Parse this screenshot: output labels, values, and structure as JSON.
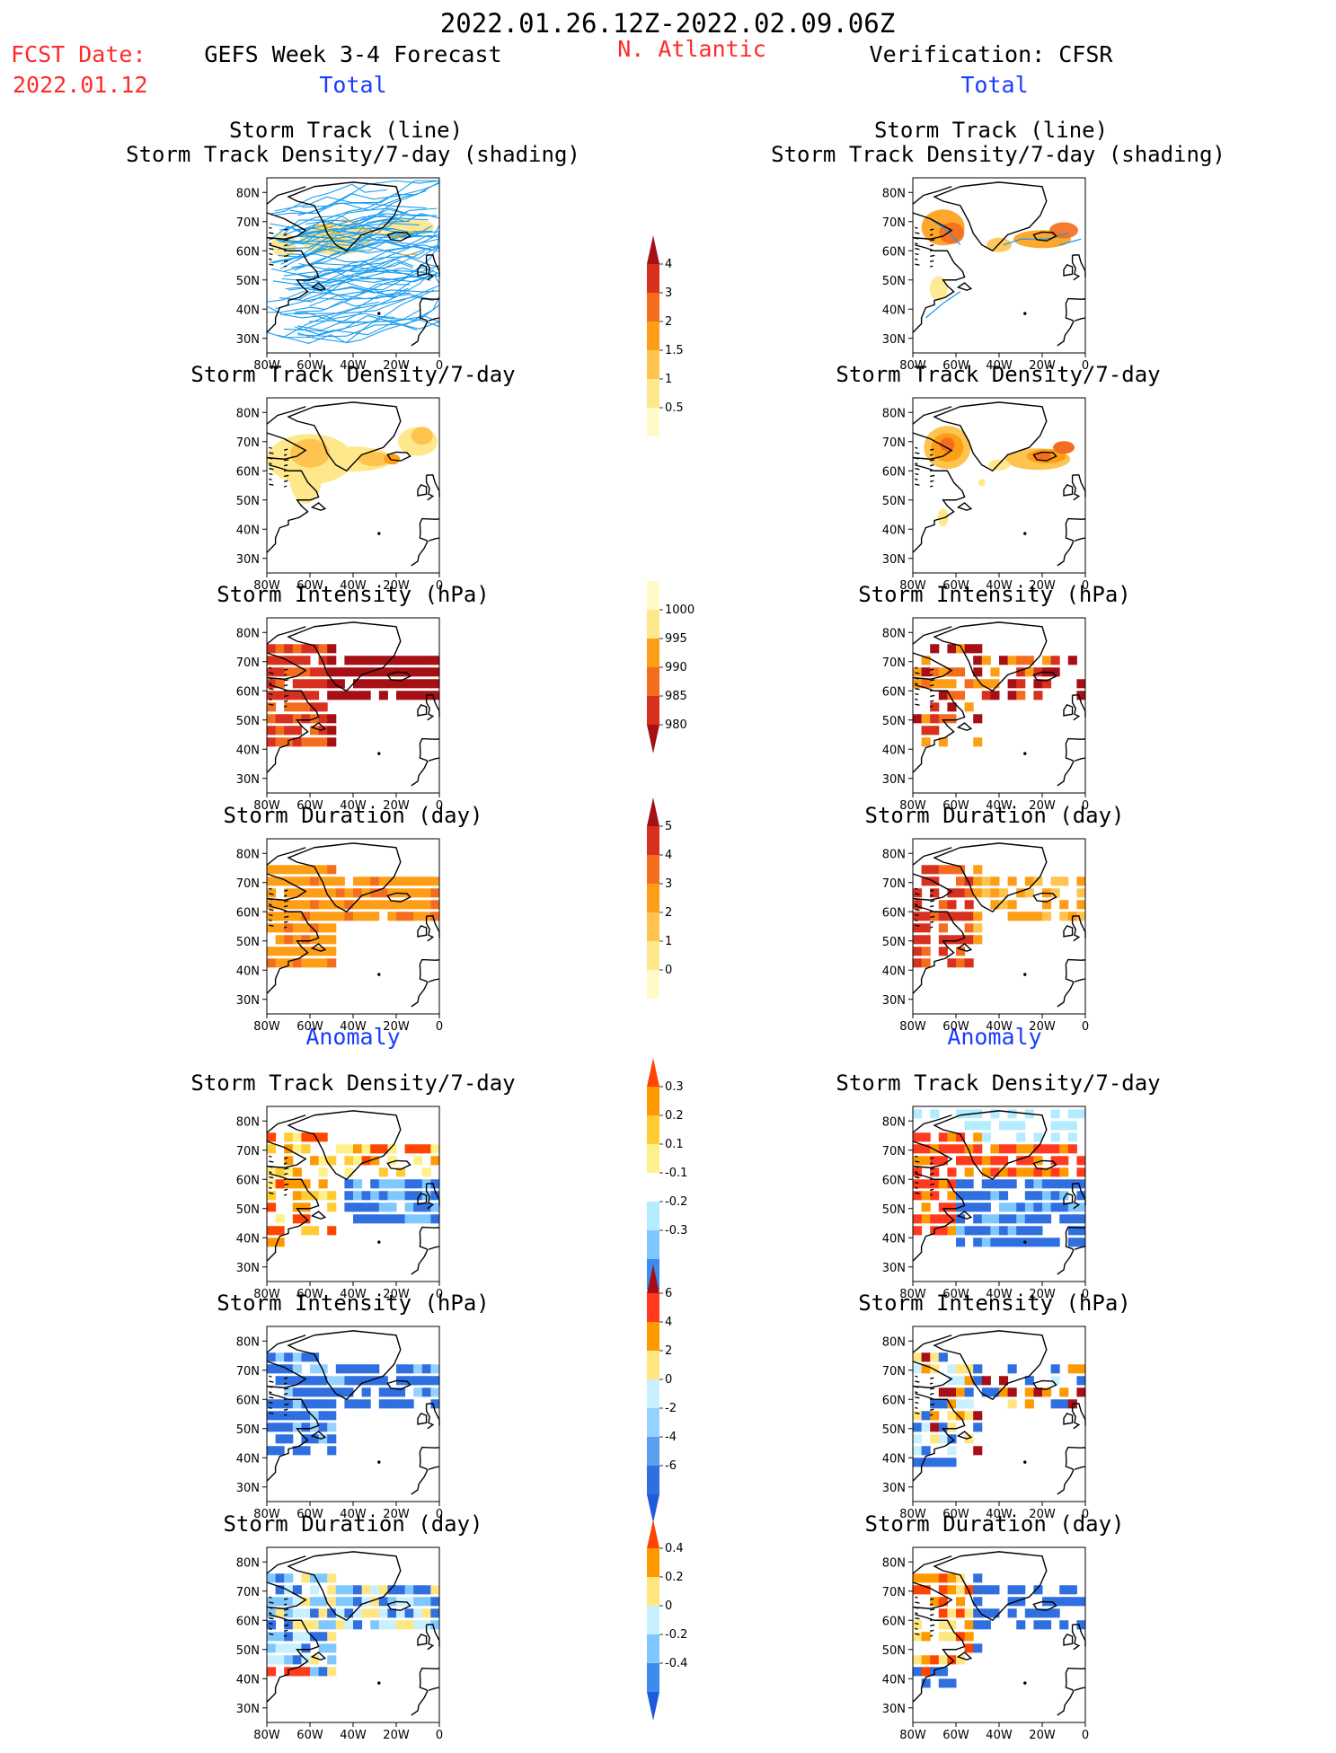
{
  "header": {
    "date_range": "2022.01.26.12Z-2022.02.09.06Z",
    "fcst_label": "FCST Date:",
    "fcst_date": "2022.01.12",
    "left_title": "GEFS Week 3-4 Forecast",
    "region": "N. Atlantic",
    "right_title": "Verification: CFSR"
  },
  "sections": {
    "total": "Total",
    "anomaly": "Anomaly"
  },
  "map_axes": {
    "lat_ticks": [
      "80N",
      "70N",
      "60N",
      "50N",
      "40N",
      "30N"
    ],
    "lon_ticks": [
      "80W",
      "60W",
      "40W",
      "20W",
      "0"
    ]
  },
  "panel_titles": {
    "track_line": "Storm Track (line)",
    "track_shading": "Storm Track Density/7-day (shading)",
    "density": "Storm Track Density/7-day",
    "intensity": "Storm Intensity (hPa)",
    "duration": "Storm Duration (day)"
  },
  "colorbars": {
    "density_total": {
      "labels": [
        "4",
        "3",
        "2",
        "1.5",
        "1",
        "0.5"
      ],
      "colors": [
        "#a50f15",
        "#d7301f",
        "#f46d1e",
        "#fd9e16",
        "#fec44f",
        "#fee88b",
        "#fffac8"
      ]
    },
    "intensity_total": {
      "labels": [
        "1000",
        "995",
        "990",
        "985",
        "980"
      ],
      "colors": [
        "#fffac8",
        "#fee88b",
        "#fd9e16",
        "#f46d1e",
        "#d7301f",
        "#a50f15"
      ]
    },
    "duration_total": {
      "labels": [
        "5",
        "4",
        "3",
        "2",
        "1",
        "0"
      ],
      "colors": [
        "#a50f15",
        "#d7301f",
        "#f46d1e",
        "#fd9e16",
        "#fec44f",
        "#fee88b",
        "#fffac8"
      ]
    },
    "density_anom": {
      "labels": [
        "0.3",
        "0.2",
        "0.1",
        "-0.1",
        "-0.2",
        "-0.3"
      ],
      "colors": [
        "#ff4500",
        "#ff9900",
        "#ffcc33",
        "#fff08a",
        "#ffffff",
        "#b4ecff",
        "#7ec8ff",
        "#3c8cf0",
        "#1e5adc"
      ]
    },
    "intensity_anom": {
      "labels": [
        "6",
        "4",
        "2",
        "0",
        "-2",
        "-4",
        "-6"
      ],
      "colors": [
        "#a50f15",
        "#ff3a1e",
        "#ff9900",
        "#ffe680",
        "#c8f0ff",
        "#96d2ff",
        "#5aa0f0",
        "#2f6fe0",
        "#1e5adc"
      ]
    },
    "duration_anom": {
      "labels": [
        "0.4",
        "0.2",
        "0",
        "-0.2",
        "-0.4"
      ],
      "colors": [
        "#ff4500",
        "#ff9900",
        "#ffe680",
        "#c8f0ff",
        "#7ec8ff",
        "#3c8cf0",
        "#1e5adc"
      ]
    }
  }
}
